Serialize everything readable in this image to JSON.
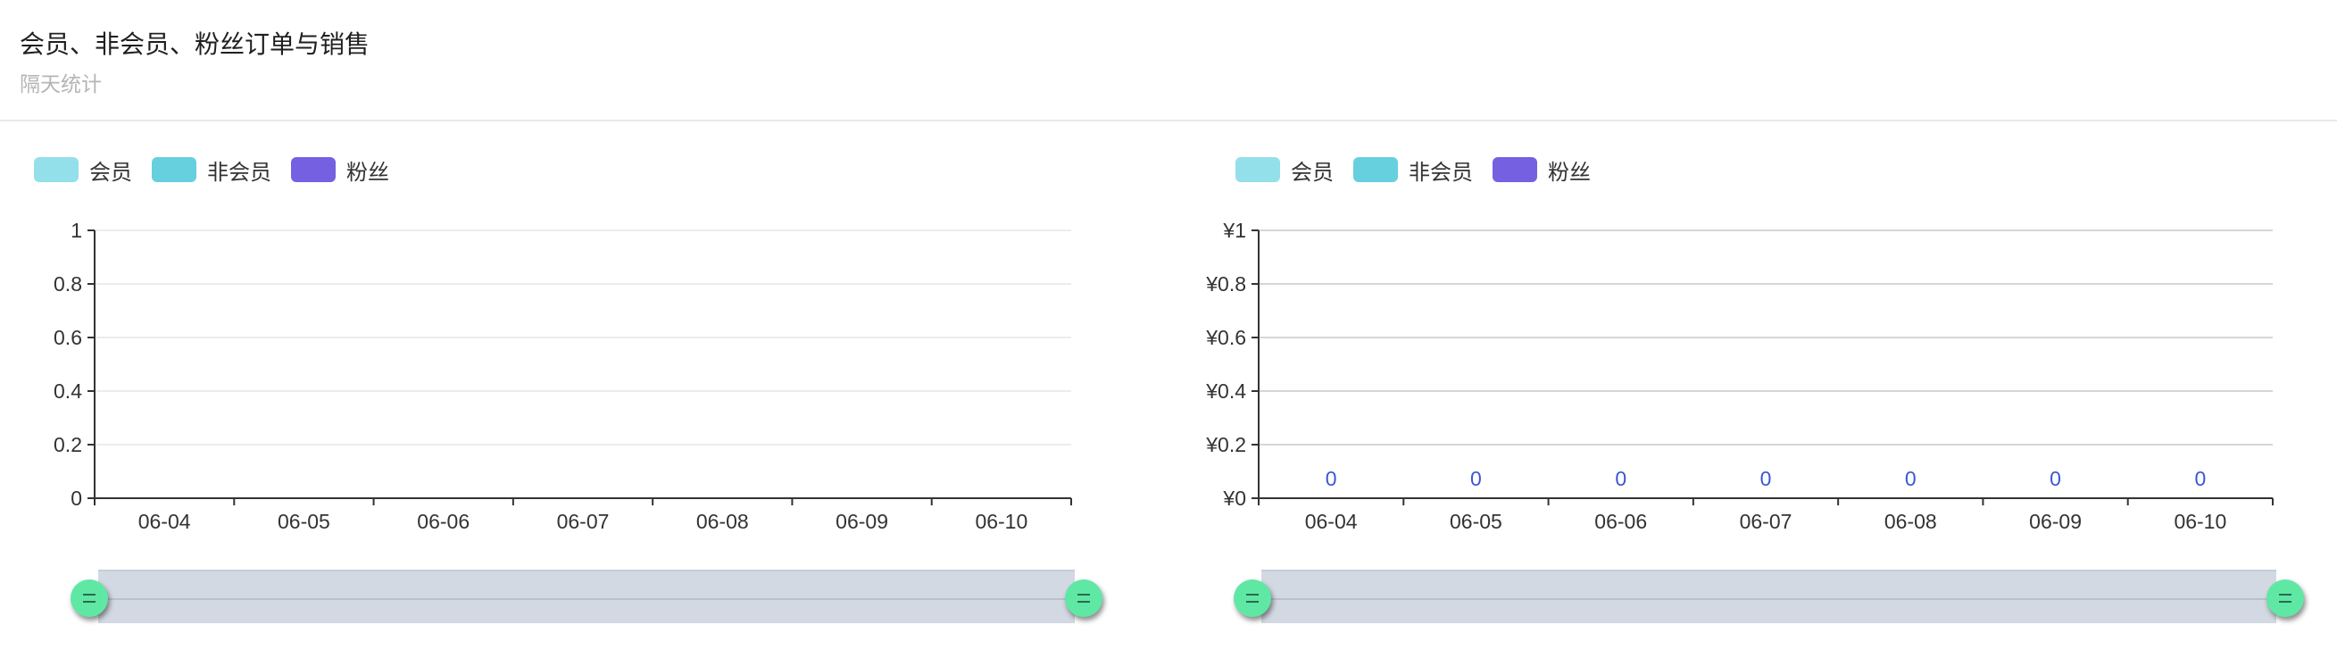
{
  "header": {
    "title": "会员、非会员、粉丝订单与销售",
    "subtitle": "隔天统计"
  },
  "legend": [
    {
      "label": "会员",
      "color": "#93e0ea"
    },
    {
      "label": "非会员",
      "color": "#66d0df"
    },
    {
      "label": "粉丝",
      "color": "#7560e2"
    }
  ],
  "chart_data": [
    {
      "type": "bar",
      "categories": [
        "06-04",
        "06-05",
        "06-06",
        "06-07",
        "06-08",
        "06-09",
        "06-10"
      ],
      "series": [
        {
          "name": "会员",
          "values": [
            0,
            0,
            0,
            0,
            0,
            0,
            0
          ]
        },
        {
          "name": "非会员",
          "values": [
            0,
            0,
            0,
            0,
            0,
            0,
            0
          ]
        },
        {
          "name": "粉丝",
          "values": [
            0,
            0,
            0,
            0,
            0,
            0,
            0
          ]
        }
      ],
      "ylim": [
        0,
        1
      ],
      "yticks": [
        "0",
        "0.2",
        "0.4",
        "0.6",
        "0.8",
        "1"
      ],
      "grid": true,
      "show_value_labels": false,
      "legend_position": "top-left"
    },
    {
      "type": "bar",
      "categories": [
        "06-04",
        "06-05",
        "06-06",
        "06-07",
        "06-08",
        "06-09",
        "06-10"
      ],
      "series": [
        {
          "name": "会员",
          "values": [
            0,
            0,
            0,
            0,
            0,
            0,
            0
          ]
        },
        {
          "name": "非会员",
          "values": [
            0,
            0,
            0,
            0,
            0,
            0,
            0
          ]
        },
        {
          "name": "粉丝",
          "values": [
            0,
            0,
            0,
            0,
            0,
            0,
            0
          ]
        }
      ],
      "ylim": [
        0,
        1
      ],
      "yticks": [
        "¥0",
        "¥0.2",
        "¥0.4",
        "¥0.6",
        "¥0.8",
        "¥1"
      ],
      "value_labels": [
        "0",
        "0",
        "0",
        "0",
        "0",
        "0",
        "0"
      ],
      "grid": true,
      "show_value_labels": true,
      "legend_position": "top-left"
    }
  ]
}
